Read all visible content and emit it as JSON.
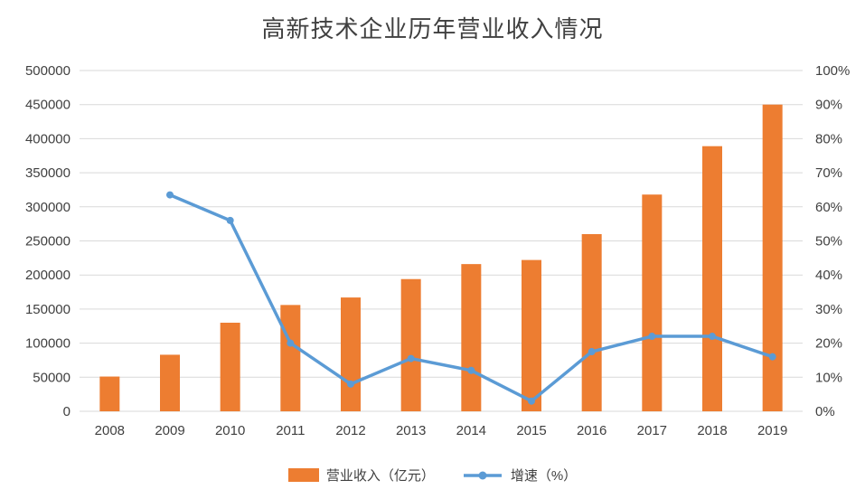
{
  "chart_data": {
    "type": "bar+line",
    "title": "高新技术企业历年营业收入情况",
    "categories": [
      "2008",
      "2009",
      "2010",
      "2011",
      "2012",
      "2013",
      "2014",
      "2015",
      "2016",
      "2017",
      "2018",
      "2019"
    ],
    "series": [
      {
        "name": "营业收入（亿元）",
        "type": "bar",
        "axis": "left",
        "color": "#ED7D31",
        "values": [
          51000,
          83000,
          130000,
          156000,
          167000,
          194000,
          216000,
          222000,
          260000,
          318000,
          389000,
          450000
        ]
      },
      {
        "name": "增速（%）",
        "type": "line",
        "axis": "right",
        "color": "#5B9BD5",
        "values": [
          null,
          63.5,
          56,
          20,
          8,
          15.5,
          12,
          3,
          17.5,
          22,
          22,
          16
        ]
      }
    ],
    "left_axis": {
      "min": 0,
      "max": 500000,
      "tick_labels": [
        "0",
        "50000",
        "100000",
        "150000",
        "200000",
        "250000",
        "300000",
        "350000",
        "400000",
        "450000",
        "500000"
      ]
    },
    "right_axis": {
      "min": 0,
      "max": 100,
      "tick_labels": [
        "0%",
        "10%",
        "20%",
        "30%",
        "40%",
        "50%",
        "60%",
        "70%",
        "80%",
        "90%",
        "100%"
      ]
    },
    "grid": true,
    "legend_position": "bottom",
    "colors": {
      "grid": "#D9D9D9",
      "axis_text": "#404040",
      "title": "#404040",
      "background": "#FFFFFF"
    }
  }
}
